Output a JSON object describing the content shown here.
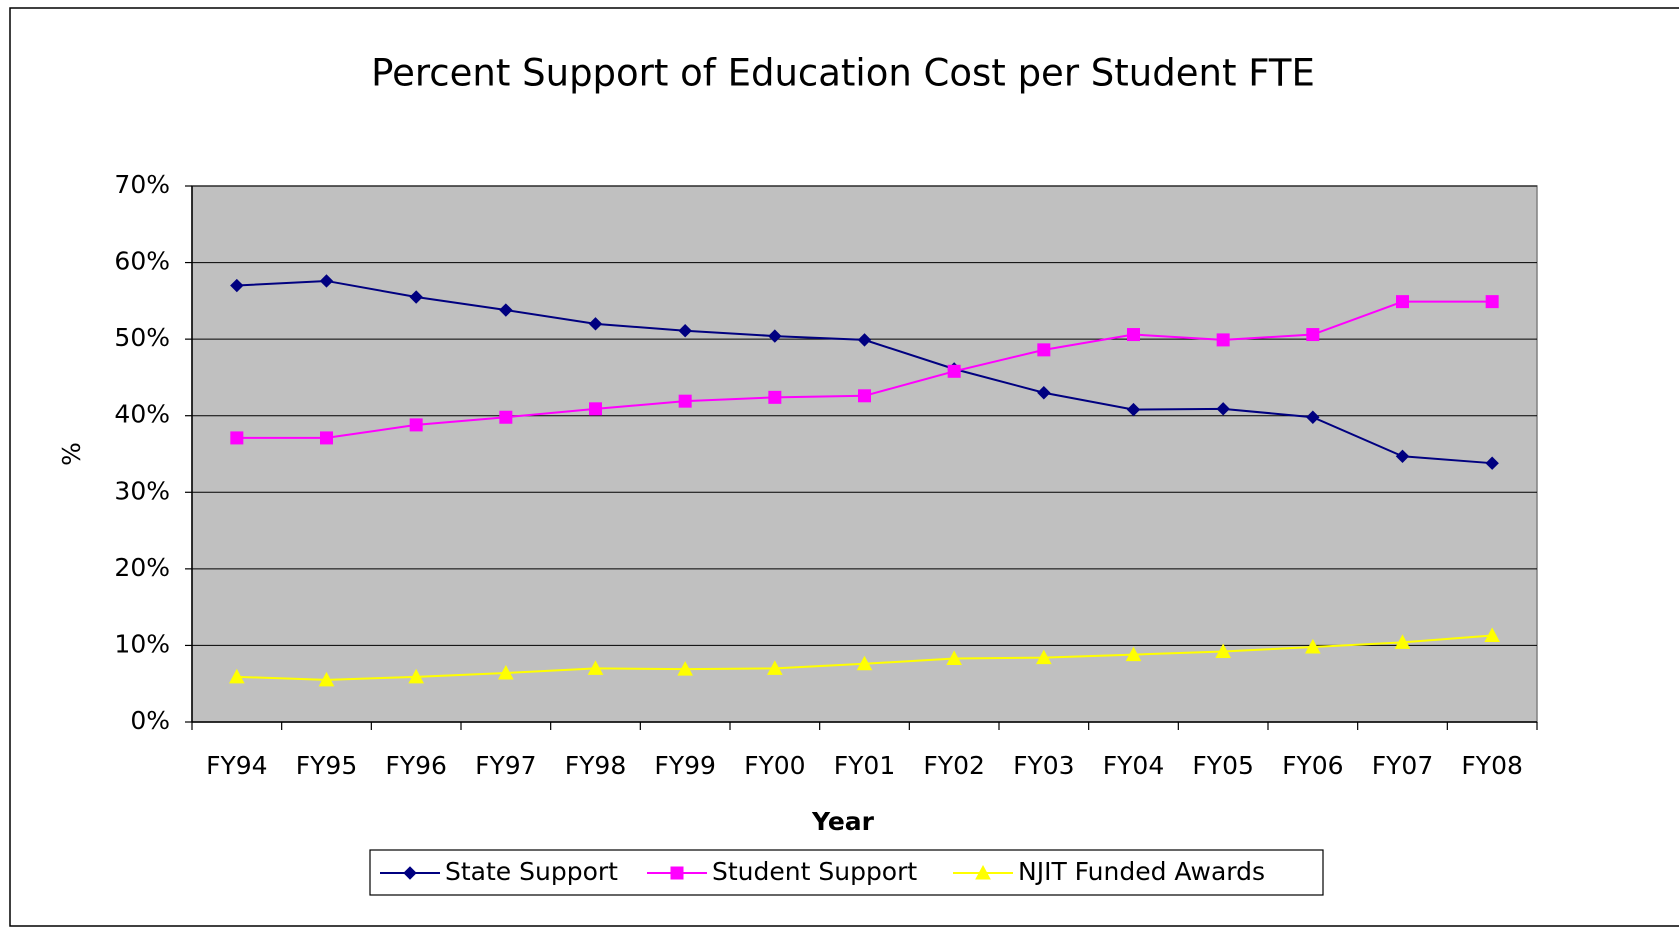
{
  "chart_data": {
    "type": "line",
    "title": "Percent Support of Education Cost per Student FTE",
    "x_label": "Year",
    "y_label": "%",
    "categories": [
      "FY94",
      "FY95",
      "FY96",
      "FY97",
      "FY98",
      "FY99",
      "FY00",
      "FY01",
      "FY02",
      "FY03",
      "FY04",
      "FY05",
      "FY06",
      "FY07",
      "FY08"
    ],
    "series": [
      {
        "name": "State Support",
        "color": "#000080",
        "marker": "diamond",
        "values": [
          57.0,
          57.6,
          55.5,
          53.8,
          52.0,
          51.1,
          50.4,
          49.9,
          46.1,
          43.0,
          40.8,
          40.9,
          39.8,
          34.7,
          33.8
        ]
      },
      {
        "name": "Student Support",
        "color": "#ff00ff",
        "marker": "square",
        "values": [
          37.1,
          37.1,
          38.8,
          39.8,
          40.9,
          41.9,
          42.4,
          42.6,
          45.8,
          48.6,
          50.6,
          49.9,
          50.6,
          54.9,
          54.9
        ]
      },
      {
        "name": "NJIT Funded Awards",
        "color": "#ffff00",
        "marker": "triangle",
        "values": [
          5.9,
          5.5,
          5.9,
          6.4,
          7.0,
          6.9,
          7.0,
          7.6,
          8.3,
          8.4,
          8.8,
          9.2,
          9.8,
          10.4,
          11.3
        ]
      }
    ],
    "ylim": [
      0,
      70
    ],
    "yticks": [
      {
        "value": 0,
        "label": "0%"
      },
      {
        "value": 10,
        "label": "10%"
      },
      {
        "value": 20,
        "label": "20%"
      },
      {
        "value": 30,
        "label": "30%"
      },
      {
        "value": 40,
        "label": "40%"
      },
      {
        "value": 50,
        "label": "50%"
      },
      {
        "value": 60,
        "label": "60%"
      },
      {
        "value": 70,
        "label": "70%"
      }
    ],
    "grid": true,
    "plot_background": "#c0c0c0",
    "legend": "bottom"
  }
}
